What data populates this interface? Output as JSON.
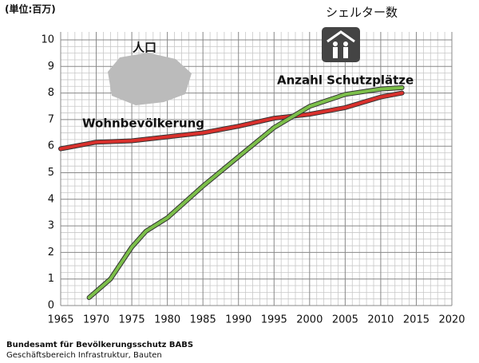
{
  "chart_data": {
    "type": "line",
    "y_unit": "(単位:百万)",
    "xlim": [
      1965,
      2020
    ],
    "xticks": [
      1965,
      1970,
      1975,
      1980,
      1985,
      1990,
      1995,
      2000,
      2005,
      2010,
      2015,
      2020
    ],
    "ylim": [
      0,
      10
    ],
    "yticks": [
      0,
      1,
      2,
      3,
      4,
      5,
      6,
      7,
      8,
      9,
      10
    ],
    "grid": true,
    "series": [
      {
        "name": "人口",
        "label": "Wohnbevölkerung",
        "color": "#d9302c",
        "x": [
          1965,
          1970,
          1975,
          1980,
          1985,
          1990,
          1995,
          2000,
          2005,
          2010,
          2013
        ],
        "values": [
          5.9,
          6.15,
          6.2,
          6.35,
          6.5,
          6.75,
          7.05,
          7.2,
          7.45,
          7.85,
          8.0
        ]
      },
      {
        "name": "シェルター数",
        "label": "Anzahl Schutzplätze",
        "color": "#7cbf4a",
        "x": [
          1969,
          1972,
          1975,
          1977,
          1980,
          1985,
          1990,
          1995,
          2000,
          2005,
          2010,
          2013
        ],
        "values": [
          0.3,
          1.0,
          2.2,
          2.8,
          3.3,
          4.5,
          5.6,
          6.7,
          7.5,
          7.95,
          8.15,
          8.2
        ]
      }
    ],
    "source": [
      "Bundesamt für Bevölkerungsschutz BABS",
      "Geschäftsbereich Infrastruktur, Bauten"
    ]
  }
}
